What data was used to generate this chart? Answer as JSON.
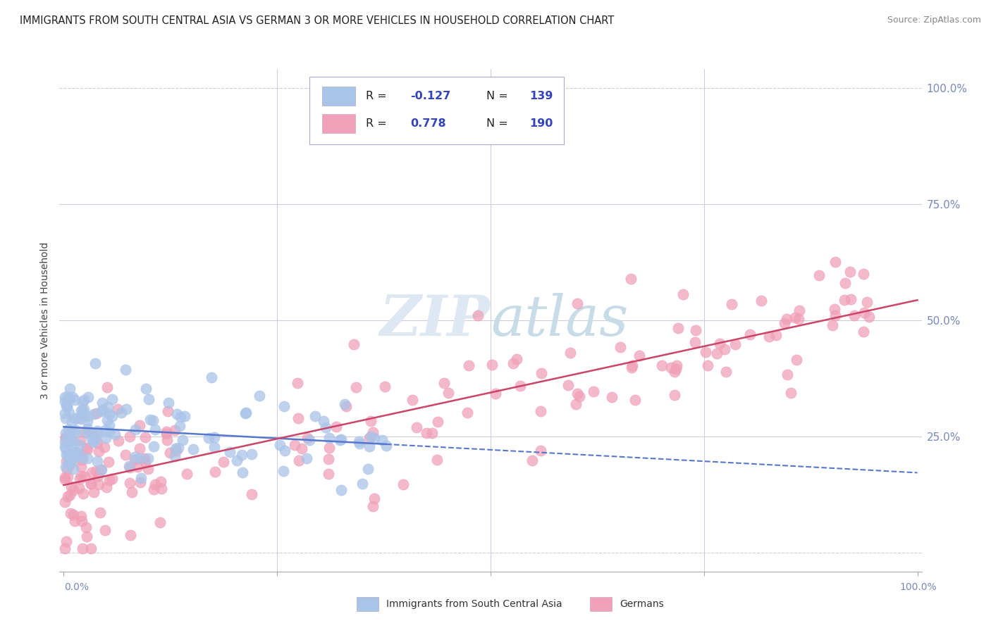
{
  "title": "IMMIGRANTS FROM SOUTH CENTRAL ASIA VS GERMAN 3 OR MORE VEHICLES IN HOUSEHOLD CORRELATION CHART",
  "source": "Source: ZipAtlas.com",
  "ylabel": "3 or more Vehicles in Household",
  "legend_label1": "Immigrants from South Central Asia",
  "legend_label2": "Germans",
  "R1": -0.127,
  "N1": 139,
  "R2": 0.778,
  "N2": 190,
  "color_blue": "#aac4e8",
  "color_pink": "#f0a0b8",
  "color_blue_line": "#5577cc",
  "color_pink_line": "#cc4466",
  "watermark_color": "#dde8f0",
  "background_color": "#ffffff",
  "grid_color": "#ccccdd",
  "tick_color": "#7788bb",
  "seed": 42
}
